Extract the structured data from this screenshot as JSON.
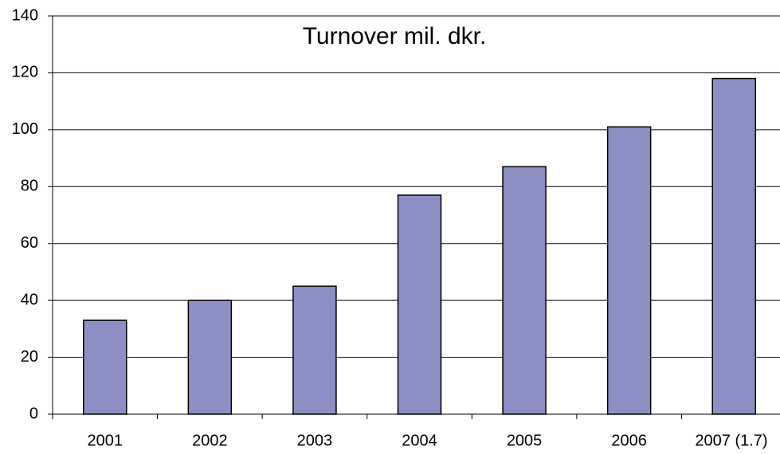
{
  "chart_data": {
    "type": "bar",
    "title": "Turnover mil. dkr.",
    "categories": [
      "2001",
      "2002",
      "2003",
      "2004",
      "2005",
      "2006",
      "2007 (1.7)"
    ],
    "values": [
      33,
      40,
      45,
      77,
      87,
      101,
      118
    ],
    "color": "#8c8fc4",
    "ylim": [
      0,
      140
    ],
    "yticks": [
      0,
      20,
      40,
      60,
      80,
      100,
      120,
      140
    ],
    "grid": true
  }
}
